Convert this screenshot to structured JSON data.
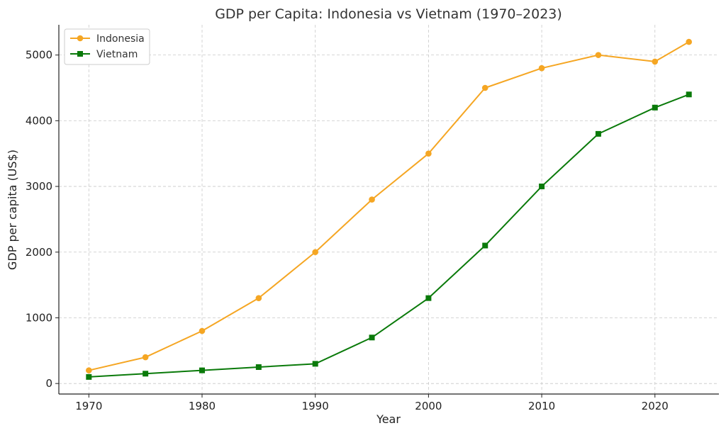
{
  "chart_data": {
    "type": "line",
    "title": "GDP per Capita: Indonesia vs Vietnam (1970–2023)",
    "xlabel": "Year",
    "ylabel": "GDP per capita (US$)",
    "xlim": [
      1967.35,
      2025.65
    ],
    "ylim": [
      -160,
      5460
    ],
    "xticks": [
      1970,
      1980,
      1990,
      2000,
      2010,
      2020
    ],
    "yticks": [
      0,
      1000,
      2000,
      3000,
      4000,
      5000
    ],
    "grid": true,
    "legend_position": "top-left",
    "x": [
      1970,
      1975,
      1980,
      1985,
      1990,
      1995,
      2000,
      2005,
      2010,
      2015,
      2020,
      2023
    ],
    "series": [
      {
        "name": "Indonesia",
        "color": "#F5A623",
        "marker": "circle",
        "values": [
          200,
          400,
          800,
          1300,
          2000,
          2800,
          3500,
          4500,
          4800,
          5000,
          4900,
          5200
        ]
      },
      {
        "name": "Vietnam",
        "color": "#0A7A0A",
        "marker": "square",
        "values": [
          100,
          150,
          200,
          250,
          300,
          700,
          1300,
          2100,
          3000,
          3800,
          4200,
          4400
        ]
      }
    ]
  }
}
